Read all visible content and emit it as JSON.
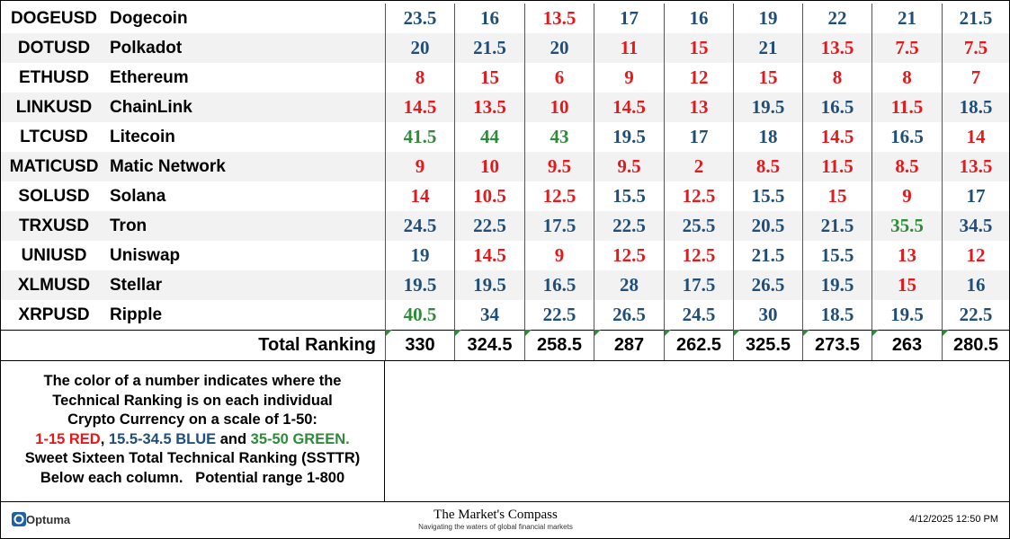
{
  "table": {
    "rows": [
      {
        "symbol": "DOGEUSD",
        "name": "Dogecoin",
        "values": [
          23.5,
          16,
          13.5,
          17,
          16,
          19,
          22,
          21,
          21.5
        ]
      },
      {
        "symbol": "DOTUSD",
        "name": "Polkadot",
        "values": [
          20,
          21.5,
          20,
          11,
          15,
          21,
          13.5,
          7.5,
          7.5
        ]
      },
      {
        "symbol": "ETHUSD",
        "name": "Ethereum",
        "values": [
          8,
          15,
          6,
          9,
          12,
          15,
          8,
          8,
          7
        ]
      },
      {
        "symbol": "LINKUSD",
        "name": "ChainLink",
        "values": [
          14.5,
          13.5,
          10,
          14.5,
          13,
          19.5,
          16.5,
          11.5,
          18.5
        ]
      },
      {
        "symbol": "LTCUSD",
        "name": "Litecoin",
        "values": [
          41.5,
          44,
          43,
          19.5,
          17,
          18,
          14.5,
          16.5,
          14
        ]
      },
      {
        "symbol": "MATICUSD",
        "name": "Matic Network",
        "values": [
          9,
          10,
          9.5,
          9.5,
          2,
          8.5,
          11.5,
          8.5,
          13.5
        ]
      },
      {
        "symbol": "SOLUSD",
        "name": "Solana",
        "values": [
          14,
          10.5,
          12.5,
          15.5,
          12.5,
          15.5,
          15,
          9,
          17
        ]
      },
      {
        "symbol": "TRXUSD",
        "name": "Tron",
        "values": [
          24.5,
          22.5,
          17.5,
          22.5,
          25.5,
          20.5,
          21.5,
          35.5,
          34.5
        ]
      },
      {
        "symbol": "UNIUSD",
        "name": "Uniswap",
        "values": [
          19,
          14.5,
          9,
          12.5,
          12.5,
          21.5,
          15.5,
          13,
          12
        ]
      },
      {
        "symbol": "XLMUSD",
        "name": "Stellar",
        "values": [
          19.5,
          19.5,
          16.5,
          28,
          17.5,
          26.5,
          19.5,
          15,
          16
        ]
      },
      {
        "symbol": "XRPUSD",
        "name": "Ripple",
        "values": [
          40.5,
          34,
          22.5,
          26.5,
          24.5,
          30,
          18.5,
          19.5,
          22.5
        ]
      }
    ],
    "total": {
      "label": "Total Ranking",
      "values": [
        330,
        324.5,
        258.5,
        287,
        262.5,
        325.5,
        273.5,
        263,
        280.5
      ]
    }
  },
  "note": {
    "lines_before": [
      "The color of a number indicates where the",
      "Technical Ranking is on each individual",
      "Crypto Currency on a scale of 1-50:"
    ],
    "scale": [
      {
        "label": "1-15 RED",
        "min": 1,
        "max": 15,
        "color": "#e3191b"
      },
      {
        "label": "15.5-34.5 BLUE",
        "min": 15.5,
        "max": 34.5,
        "color": "#1f4e79"
      },
      {
        "label": "35-50 GREEN.",
        "min": 35,
        "max": 50,
        "color": "#2e8b3a"
      }
    ],
    "separators": [
      ", ",
      " and "
    ],
    "lines_after": [
      "Sweet Sixteen Total Technical Ranking (SSTTR)",
      "Below each column.   Potential range 1-800"
    ]
  },
  "footer": {
    "brand": "Optuma",
    "title": "The Market's Compass",
    "tagline": "Navigating the waters of global financial markets",
    "timestamp": "4/12/2025 12:50 PM"
  }
}
